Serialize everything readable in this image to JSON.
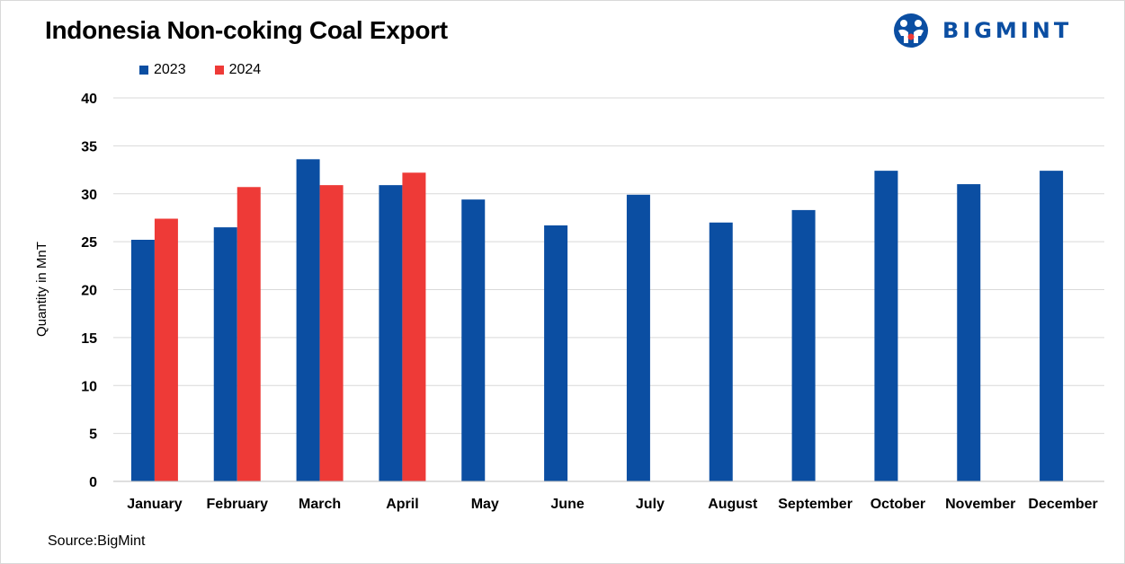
{
  "header": {
    "title": "Indonesia Non-coking Coal Export",
    "logo_text": "BIGMINT"
  },
  "footer": {
    "source": "Source:BigMint"
  },
  "colors": {
    "series_2023": "#0b4ea2",
    "series_2024": "#ee3a37",
    "grid": "#d9d9d9"
  },
  "chart_data": {
    "type": "bar",
    "title": "Indonesia Non-coking Coal Export",
    "xlabel": "",
    "ylabel": "Quantity in MnT",
    "ylim": [
      0,
      40
    ],
    "yticks": [
      0,
      5,
      10,
      15,
      20,
      25,
      30,
      35,
      40
    ],
    "grid": true,
    "legend_position": "top-left",
    "categories": [
      "January",
      "February",
      "March",
      "April",
      "May",
      "June",
      "July",
      "August",
      "September",
      "October",
      "November",
      "December"
    ],
    "series": [
      {
        "name": "2023",
        "color": "#0b4ea2",
        "values": [
          25.2,
          26.5,
          33.6,
          30.9,
          29.4,
          26.7,
          29.9,
          27.0,
          28.3,
          32.4,
          31.0,
          32.4
        ]
      },
      {
        "name": "2024",
        "color": "#ee3a37",
        "values": [
          27.4,
          30.7,
          30.9,
          32.2,
          null,
          null,
          null,
          null,
          null,
          null,
          null,
          null
        ]
      }
    ]
  }
}
